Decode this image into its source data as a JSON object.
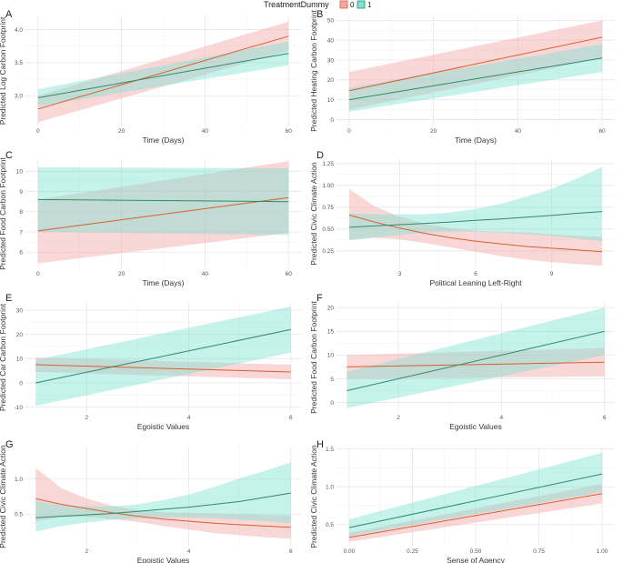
{
  "legend": {
    "title": "TreatmentDummy",
    "entries": [
      {
        "label": "0",
        "color": "#D95F30",
        "fill": "#F4A6A6"
      },
      {
        "label": "1",
        "color": "#2E8B6A",
        "fill": "#7FE3D2"
      }
    ]
  },
  "chart_data": [
    {
      "id": "A",
      "type": "line",
      "panel_label": "A",
      "xlabel": "Time (Days)",
      "ylabel": "Predicted Log Carbon Footprint",
      "xlim": [
        -3,
        63
      ],
      "ylim": [
        2.55,
        4.2
      ],
      "xticks": [
        0,
        20,
        40,
        60
      ],
      "yticks": [
        3.0,
        3.5,
        4.0
      ],
      "ytick_format": 1,
      "x": [
        0,
        60
      ],
      "series": [
        {
          "name": "0",
          "values": [
            2.8,
            3.9
          ],
          "lower": [
            2.6,
            3.68
          ],
          "upper": [
            3.0,
            4.12
          ]
        },
        {
          "name": "1",
          "values": [
            2.97,
            3.64
          ],
          "lower": [
            2.84,
            3.46
          ],
          "upper": [
            3.1,
            3.82
          ]
        }
      ]
    },
    {
      "id": "B",
      "type": "line",
      "panel_label": "B",
      "xlabel": "Time (Days)",
      "ylabel": "Predicted Heating Carbon Footprint",
      "xlim": [
        -3,
        63
      ],
      "ylim": [
        -3,
        52
      ],
      "xticks": [
        0,
        20,
        40,
        60
      ],
      "yticks": [
        0,
        10,
        20,
        30,
        40,
        50
      ],
      "ytick_format": 0,
      "x": [
        0,
        60
      ],
      "series": [
        {
          "name": "0",
          "values": [
            14.5,
            41.5
          ],
          "lower": [
            5,
            31
          ],
          "upper": [
            24,
            50
          ]
        },
        {
          "name": "1",
          "values": [
            10,
            31
          ],
          "lower": [
            4,
            24
          ],
          "upper": [
            16,
            38
          ]
        }
      ]
    },
    {
      "id": "C",
      "type": "line",
      "panel_label": "C",
      "xlabel": "Time (Days)",
      "ylabel": "Predicted Food Carbon Footprint",
      "xlim": [
        -3,
        63
      ],
      "ylim": [
        5.2,
        10.6
      ],
      "xticks": [
        0,
        20,
        40,
        60
      ],
      "yticks": [
        6,
        7,
        8,
        9,
        10
      ],
      "ytick_format": 0,
      "x": [
        0,
        60
      ],
      "series": [
        {
          "name": "0",
          "values": [
            7.05,
            8.7
          ],
          "lower": [
            5.45,
            6.95
          ],
          "upper": [
            8.6,
            10.5
          ]
        },
        {
          "name": "1",
          "values": [
            8.6,
            8.5
          ],
          "lower": [
            7.0,
            6.85
          ],
          "upper": [
            10.2,
            10.15
          ]
        }
      ]
    },
    {
      "id": "D",
      "type": "line",
      "panel_label": "D",
      "xlabel": "Political Leaning Left-Right",
      "ylabel": "Predicted Civic Climate Action",
      "xlim": [
        0.5,
        11.5
      ],
      "ylim": [
        0.05,
        1.3
      ],
      "xticks": [
        3,
        6,
        9
      ],
      "yticks": [
        0.25,
        0.5,
        0.75,
        1.0,
        1.25
      ],
      "ytick_format": 2,
      "x": [
        1,
        2,
        3,
        4,
        5,
        6,
        7,
        8,
        9,
        10,
        11
      ],
      "series": [
        {
          "name": "0",
          "values": [
            0.66,
            0.58,
            0.51,
            0.45,
            0.4,
            0.36,
            0.33,
            0.3,
            0.28,
            0.26,
            0.24
          ],
          "lower": [
            0.38,
            0.4,
            0.38,
            0.34,
            0.29,
            0.24,
            0.19,
            0.15,
            0.12,
            0.1,
            0.08
          ],
          "upper": [
            0.96,
            0.76,
            0.64,
            0.56,
            0.51,
            0.48,
            0.47,
            0.46,
            0.44,
            0.42,
            0.41
          ]
        },
        {
          "name": "1",
          "values": [
            0.52,
            0.535,
            0.55,
            0.565,
            0.58,
            0.6,
            0.615,
            0.635,
            0.655,
            0.68,
            0.7
          ],
          "lower": [
            0.37,
            0.4,
            0.43,
            0.46,
            0.47,
            0.47,
            0.46,
            0.44,
            0.42,
            0.39,
            0.36
          ],
          "upper": [
            0.68,
            0.67,
            0.67,
            0.67,
            0.69,
            0.73,
            0.79,
            0.87,
            0.96,
            1.08,
            1.21
          ]
        }
      ]
    },
    {
      "id": "E",
      "type": "line",
      "panel_label": "E",
      "xlabel": "Egoistic Values",
      "ylabel": "Predicted Car Carbon Footprint",
      "xlim": [
        0.8,
        6.2
      ],
      "ylim": [
        -12,
        33
      ],
      "xticks": [
        2,
        4,
        6
      ],
      "yticks": [
        -10,
        0,
        10,
        20,
        30
      ],
      "ytick_format": 0,
      "x": [
        1,
        6
      ],
      "series": [
        {
          "name": "0",
          "values": [
            7.5,
            4.5
          ],
          "lower": [
            4.5,
            1.5
          ],
          "upper": [
            10.5,
            7.5
          ]
        },
        {
          "name": "1",
          "values": [
            0,
            22
          ],
          "lower": [
            -9.5,
            12.5
          ],
          "upper": [
            9.5,
            31.5
          ]
        }
      ]
    },
    {
      "id": "F",
      "type": "line",
      "panel_label": "F",
      "xlabel": "Egoistic Values",
      "ylabel": "Predicted Food Carbon Footprint",
      "xlim": [
        0.8,
        6.2
      ],
      "ylim": [
        -2,
        21
      ],
      "xticks": [
        2,
        4,
        6
      ],
      "yticks": [
        0,
        5,
        10,
        15,
        20
      ],
      "ytick_format": 0,
      "x": [
        1,
        6
      ],
      "series": [
        {
          "name": "0",
          "values": [
            7.5,
            8.5
          ],
          "lower": [
            5,
            5.5
          ],
          "upper": [
            10,
            11.5
          ]
        },
        {
          "name": "1",
          "values": [
            2.5,
            15
          ],
          "lower": [
            -1.2,
            10
          ],
          "upper": [
            6.5,
            20
          ]
        }
      ]
    },
    {
      "id": "G",
      "type": "line",
      "panel_label": "G",
      "xlabel": "Egoistic Values",
      "ylabel": "Predicted Civic Climate Action",
      "xlim": [
        0.8,
        6.2
      ],
      "ylim": [
        0.05,
        1.45
      ],
      "xticks": [
        2,
        4,
        6
      ],
      "yticks": [
        0.5,
        1.0
      ],
      "ytick_format": 1,
      "x": [
        1,
        1.5,
        2,
        2.5,
        3,
        3.5,
        4,
        4.5,
        5,
        5.5,
        6
      ],
      "series": [
        {
          "name": "0",
          "values": [
            0.72,
            0.64,
            0.58,
            0.52,
            0.47,
            0.43,
            0.4,
            0.37,
            0.35,
            0.33,
            0.31
          ],
          "lower": [
            0.4,
            0.46,
            0.46,
            0.43,
            0.39,
            0.33,
            0.28,
            0.23,
            0.2,
            0.17,
            0.15
          ],
          "upper": [
            1.16,
            0.87,
            0.72,
            0.62,
            0.56,
            0.53,
            0.52,
            0.51,
            0.5,
            0.49,
            0.48
          ]
        },
        {
          "name": "1",
          "values": [
            0.45,
            0.47,
            0.49,
            0.51,
            0.54,
            0.57,
            0.6,
            0.64,
            0.68,
            0.74,
            0.8
          ],
          "lower": [
            0.25,
            0.33,
            0.38,
            0.42,
            0.44,
            0.45,
            0.45,
            0.44,
            0.42,
            0.4,
            0.37
          ],
          "upper": [
            0.69,
            0.63,
            0.61,
            0.61,
            0.64,
            0.7,
            0.78,
            0.89,
            1.01,
            1.12,
            1.24
          ]
        }
      ]
    },
    {
      "id": "H",
      "type": "line",
      "panel_label": "H",
      "xlabel": "Sense of Agency",
      "ylabel": "Predicted Civic Climate Action",
      "xlim": [
        -0.05,
        1.05
      ],
      "ylim": [
        0.22,
        1.52
      ],
      "xticks": [
        0,
        0.25,
        0.5,
        0.75,
        1.0
      ],
      "yticks": [
        0.5,
        1.0,
        1.5
      ],
      "ytick_format": 1,
      "xtick_format": 2,
      "x": [
        0,
        1
      ],
      "series": [
        {
          "name": "0",
          "values": [
            0.33,
            0.91
          ],
          "lower": [
            0.27,
            0.78
          ],
          "upper": [
            0.39,
            1.04
          ]
        },
        {
          "name": "1",
          "values": [
            0.46,
            1.17
          ],
          "lower": [
            0.35,
            0.93
          ],
          "upper": [
            0.57,
            1.45
          ]
        }
      ]
    }
  ]
}
